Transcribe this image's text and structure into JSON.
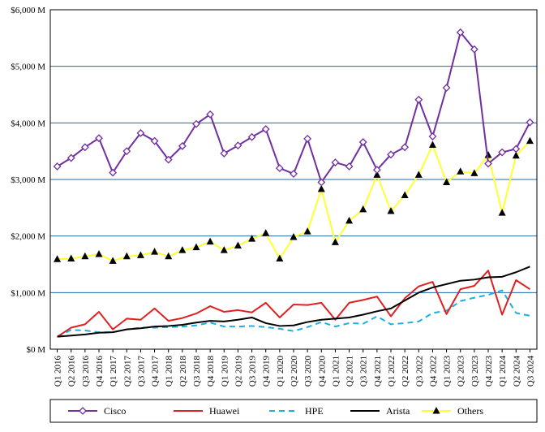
{
  "chart_data": {
    "type": "line",
    "title": "",
    "xlabel": "",
    "ylabel": "",
    "ylim": [
      0,
      6000
    ],
    "yticks": [
      0,
      1000,
      2000,
      3000,
      4000,
      5000,
      6000
    ],
    "ytick_labels": [
      "$0 M",
      "$1,000 M",
      "$2,000 M",
      "$3,000 M",
      "$4,000 M",
      "$5,000 M",
      "$6,000 M"
    ],
    "grid": "horizontal",
    "legend_position": "bottom",
    "categories": [
      "Q1 2016",
      "Q2 2016",
      "Q3 2016",
      "Q4 2016",
      "Q1 2017",
      "Q2 2017",
      "Q3 2017",
      "Q4 2017",
      "Q1 2018",
      "Q2 2018",
      "Q3 2018",
      "Q4 2018",
      "Q1 2019",
      "Q2 2019",
      "Q3 2019",
      "Q4 2019",
      "Q1 2020",
      "Q2 2020",
      "Q3 2020",
      "Q4 2020",
      "Q1 2021",
      "Q2 2021",
      "Q3 2021",
      "Q4 2021",
      "Q1 2022",
      "Q2 2022",
      "Q3 2022",
      "Q4 2022",
      "Q1 2023",
      "Q2 2023",
      "Q3 2023",
      "Q4 2023",
      "Q1 2024",
      "Q2 2024",
      "Q3 2024"
    ],
    "series": [
      {
        "name": "Cisco",
        "color": "#7030a0",
        "marker": "diamond",
        "dash": "solid",
        "values": [
          3230,
          3380,
          3570,
          3730,
          3120,
          3500,
          3820,
          3680,
          3350,
          3590,
          3980,
          4150,
          3460,
          3600,
          3750,
          3890,
          3200,
          3100,
          3720,
          2950,
          3300,
          3230,
          3660,
          3170,
          3440,
          3570,
          4410,
          3760,
          4620,
          5600,
          5300,
          3280,
          3480,
          3540,
          4010
        ]
      },
      {
        "name": "Huawei",
        "color": "#e02020",
        "marker": "none",
        "dash": "solid",
        "values": [
          220,
          380,
          440,
          660,
          350,
          540,
          520,
          720,
          500,
          550,
          630,
          760,
          660,
          690,
          650,
          820,
          560,
          790,
          780,
          820,
          520,
          820,
          870,
          930,
          580,
          900,
          1110,
          1190,
          620,
          1060,
          1120,
          1390,
          610,
          1220,
          1060
        ]
      },
      {
        "name": "HPE",
        "color": "#1eaee0",
        "marker": "none",
        "dash": "dashed",
        "values": [
          220,
          340,
          330,
          300,
          300,
          350,
          380,
          380,
          390,
          400,
          420,
          470,
          400,
          400,
          410,
          390,
          360,
          320,
          390,
          480,
          400,
          460,
          450,
          580,
          440,
          460,
          490,
          640,
          680,
          850,
          910,
          960,
          1040,
          640,
          590
        ]
      },
      {
        "name": "Arista",
        "color": "#000000",
        "marker": "none",
        "dash": "solid",
        "values": [
          220,
          240,
          260,
          290,
          300,
          350,
          370,
          400,
          410,
          430,
          470,
          500,
          490,
          520,
          560,
          460,
          410,
          420,
          480,
          520,
          540,
          560,
          610,
          670,
          720,
          860,
          1000,
          1090,
          1150,
          1210,
          1230,
          1270,
          1280,
          1360,
          1460
        ]
      },
      {
        "name": "Others",
        "color": "#ffff33",
        "marker": "triangle",
        "dash": "solid",
        "values": [
          1590,
          1600,
          1640,
          1680,
          1560,
          1640,
          1660,
          1720,
          1640,
          1750,
          1800,
          1900,
          1750,
          1830,
          1950,
          2050,
          1600,
          1980,
          2080,
          2830,
          1890,
          2270,
          2470,
          3080,
          2440,
          2720,
          3080,
          3610,
          2950,
          3140,
          3110,
          3430,
          2410,
          3420,
          3680
        ]
      }
    ]
  }
}
